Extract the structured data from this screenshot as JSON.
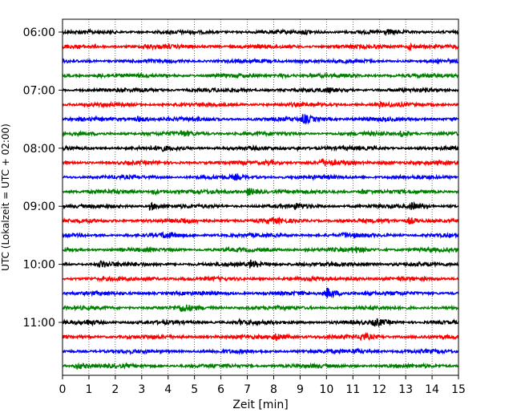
{
  "chart_data": {
    "type": "line",
    "title": "",
    "xlabel": "Zeit  [min]",
    "ylabel": "UTC (Lokalzeit = UTC + 02:00)",
    "xlim": [
      0,
      15
    ],
    "xticks": [
      0,
      1,
      2,
      3,
      4,
      5,
      6,
      7,
      8,
      9,
      10,
      11,
      12,
      13,
      14,
      15
    ],
    "x_grid": "dotted vertical at each minute",
    "row_interval_min": 15,
    "yticks": [
      {
        "label": "06:00",
        "row": 0
      },
      {
        "label": "07:00",
        "row": 4
      },
      {
        "label": "08:00",
        "row": 8
      },
      {
        "label": "09:00",
        "row": 12
      },
      {
        "label": "10:00",
        "row": 16
      },
      {
        "label": "11:00",
        "row": 20
      }
    ],
    "row_colors": [
      "#000000",
      "#ff0000",
      "#0000ff",
      "#008000"
    ],
    "rows": [
      {
        "start": "06:00",
        "events": [
          {
            "t": 9.1,
            "amp": 0.35
          },
          {
            "t": 12.3,
            "amp": 0.3
          }
        ]
      },
      {
        "start": "06:15",
        "events": [
          {
            "t": 3.1,
            "amp": 0.3
          },
          {
            "t": 13.1,
            "amp": 0.6
          }
        ]
      },
      {
        "start": "06:30",
        "events": [
          {
            "t": 9.0,
            "amp": 0.3
          }
        ]
      },
      {
        "start": "06:45",
        "events": [
          {
            "t": 1.3,
            "amp": 0.35
          },
          {
            "t": 8.2,
            "amp": 0.4
          }
        ]
      },
      {
        "start": "07:00",
        "events": [
          {
            "t": 3.0,
            "amp": 0.3
          },
          {
            "t": 10.0,
            "amp": 0.3
          }
        ]
      },
      {
        "start": "07:15",
        "events": [
          {
            "t": 12.0,
            "amp": 0.3
          }
        ]
      },
      {
        "start": "07:30",
        "events": [
          {
            "t": 2.8,
            "amp": 0.7
          },
          {
            "t": 9.1,
            "amp": 1.0
          }
        ]
      },
      {
        "start": "07:45",
        "events": [
          {
            "t": 4.5,
            "amp": 0.5
          },
          {
            "t": 12.8,
            "amp": 0.5
          }
        ]
      },
      {
        "start": "08:00",
        "events": [
          {
            "t": 3.6,
            "amp": 0.5
          },
          {
            "t": 8.9,
            "amp": 0.3
          }
        ]
      },
      {
        "start": "08:15",
        "events": [
          {
            "t": 7.7,
            "amp": 0.4
          },
          {
            "t": 9.8,
            "amp": 0.7
          },
          {
            "t": 12.0,
            "amp": 0.3
          }
        ]
      },
      {
        "start": "08:30",
        "events": [
          {
            "t": 6.5,
            "amp": 0.3
          }
        ]
      },
      {
        "start": "08:45",
        "events": [
          {
            "t": 3.4,
            "amp": 0.5
          },
          {
            "t": 7.0,
            "amp": 0.85
          },
          {
            "t": 11.3,
            "amp": 0.5
          }
        ]
      },
      {
        "start": "09:00",
        "events": [
          {
            "t": 3.3,
            "amp": 0.8
          },
          {
            "t": 8.8,
            "amp": 0.45
          },
          {
            "t": 13.2,
            "amp": 0.7
          }
        ]
      },
      {
        "start": "09:15",
        "events": [
          {
            "t": 4.5,
            "amp": 0.4
          },
          {
            "t": 7.8,
            "amp": 0.6
          },
          {
            "t": 13.1,
            "amp": 0.7
          }
        ]
      },
      {
        "start": "09:30",
        "events": [
          {
            "t": 3.8,
            "amp": 0.5
          },
          {
            "t": 10.6,
            "amp": 0.3
          }
        ]
      },
      {
        "start": "09:45",
        "events": [
          {
            "t": 11.0,
            "amp": 0.6
          }
        ]
      },
      {
        "start": "10:00",
        "events": [
          {
            "t": 1.4,
            "amp": 0.75
          },
          {
            "t": 7.1,
            "amp": 0.9
          },
          {
            "t": 11.3,
            "amp": 0.3
          }
        ]
      },
      {
        "start": "10:15",
        "events": [
          {
            "t": 3.1,
            "amp": 0.4
          },
          {
            "t": 10.8,
            "amp": 0.3
          }
        ]
      },
      {
        "start": "10:30",
        "events": [
          {
            "t": 10.0,
            "amp": 1.2
          }
        ]
      },
      {
        "start": "10:45",
        "events": [
          {
            "t": 4.5,
            "amp": 0.7
          }
        ]
      },
      {
        "start": "11:00",
        "events": [
          {
            "t": 0.9,
            "amp": 0.45
          },
          {
            "t": 6.7,
            "amp": 0.4
          },
          {
            "t": 11.8,
            "amp": 0.8
          }
        ]
      },
      {
        "start": "11:15",
        "events": [
          {
            "t": 8.0,
            "amp": 0.8
          },
          {
            "t": 11.3,
            "amp": 0.7
          }
        ]
      },
      {
        "start": "11:30",
        "events": [
          {
            "t": 11.0,
            "amp": 0.4
          }
        ]
      },
      {
        "start": "11:45",
        "events": [
          {
            "t": 0.5,
            "amp": 0.7
          }
        ]
      }
    ]
  }
}
